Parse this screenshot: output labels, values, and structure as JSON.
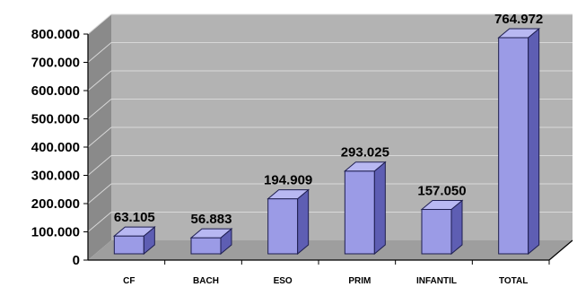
{
  "chart_data": {
    "type": "bar",
    "categories": [
      "CF",
      "BACH",
      "ESO",
      "PRIM",
      "INFANTIL",
      "TOTAL"
    ],
    "values": [
      63105,
      56883,
      194909,
      293025,
      157050,
      764972
    ],
    "data_labels": [
      "63.105",
      "56.883",
      "194.909",
      "293.025",
      "157.050",
      "764.972"
    ],
    "ylim": [
      0,
      800000
    ],
    "yticks": [
      "0",
      "100.000",
      "200.000",
      "300.000",
      "400.000",
      "500.000",
      "600.000",
      "700.000",
      "800.000"
    ],
    "title": "",
    "xlabel": "",
    "ylabel": "",
    "grid": true,
    "legend": "none",
    "style": "3d-column",
    "colors": {
      "bar_front": "#9b9be6",
      "bar_side": "#5e5eb3",
      "bar_top": "#b8b8f2",
      "bar_stroke": "#1e1e50",
      "back_wall": "#b3b3b3",
      "side_wall": "#8a8a8a",
      "floor": "#9e9e9e",
      "grid": "#d8d8d8"
    }
  }
}
